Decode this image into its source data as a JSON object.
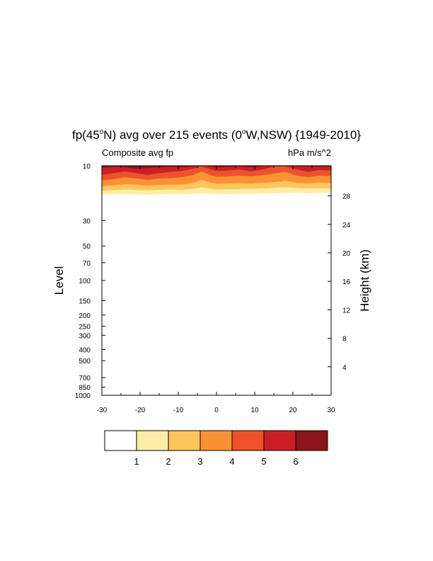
{
  "chart_data": {
    "type": "contour",
    "title_prefix": "fp(45",
    "title_deg1": "o",
    "title_mid": "N) avg over 215 events (0",
    "title_deg2": "o",
    "title_suffix": "W,NSW) {1949-2010}",
    "left_string": "Composite avg fp",
    "right_string": "hPa m/s^2",
    "ylabel": "Level",
    "ylabel_right": "Height (km)",
    "x_ticks": [
      -30,
      -20,
      -10,
      0,
      10,
      20,
      30
    ],
    "x_tick_labels": [
      "-30",
      "-20",
      "-10",
      "0",
      "10",
      "20",
      "30"
    ],
    "y_ticks": [
      10,
      30,
      50,
      70,
      100,
      150,
      200,
      250,
      300,
      400,
      500,
      700,
      850,
      1000
    ],
    "y_tick_labels": [
      "10",
      "30",
      "50",
      "70",
      "100",
      "150",
      "200",
      "250",
      "300",
      "400",
      "500",
      "700",
      "850",
      "1000"
    ],
    "y_log_scale": true,
    "ylim": [
      1000,
      10
    ],
    "xlim": [
      -30,
      30
    ],
    "height_ticks_km": [
      4,
      8,
      12,
      16,
      20,
      24,
      28
    ],
    "height_tick_labels": [
      "4",
      "8",
      "12",
      "16",
      "20",
      "24",
      "28"
    ],
    "contour_levels": [
      1,
      2,
      3,
      4,
      5,
      6
    ],
    "contour_level_labels": [
      "1",
      "2",
      "3",
      "4",
      "5",
      "6"
    ],
    "colors": [
      "#ffffff",
      "#fdeda8",
      "#fdc65c",
      "#f99235",
      "#ec532b",
      "#cb1f28",
      "#8b1419"
    ],
    "x_profile": [
      -30,
      -27,
      -24,
      -21,
      -18,
      -15,
      -12,
      -9,
      -6,
      -4,
      -2,
      0,
      3,
      6,
      9,
      12,
      15,
      18,
      21,
      24,
      27,
      30
    ],
    "isoline_pressure": {
      "1": [
        17.8,
        17.7,
        17.6,
        17.8,
        17.9,
        17.7,
        17.6,
        17.7,
        17.6,
        17.4,
        17.5,
        17.6,
        17.7,
        17.6,
        17.6,
        17.5,
        17.4,
        17.3,
        17.3,
        17.4,
        17.3,
        17.3
      ],
      "2": [
        16.5,
        16.3,
        16.1,
        16.2,
        16.4,
        16.2,
        16.1,
        16.2,
        15.9,
        15.4,
        15.8,
        16.0,
        16.0,
        15.9,
        15.9,
        15.8,
        15.6,
        15.4,
        15.6,
        15.8,
        15.7,
        15.7
      ],
      "3": [
        15.1,
        14.8,
        14.5,
        14.6,
        14.9,
        14.7,
        14.6,
        14.6,
        14.1,
        13.3,
        13.9,
        14.4,
        14.3,
        14.2,
        14.3,
        14.1,
        13.9,
        13.5,
        14.1,
        14.3,
        14.0,
        14.1
      ],
      "4": [
        13.4,
        13.1,
        12.6,
        12.9,
        13.3,
        12.9,
        12.8,
        12.6,
        12.0,
        11.2,
        11.9,
        12.5,
        12.4,
        12.2,
        12.4,
        12.1,
        11.7,
        11.3,
        12.2,
        12.6,
        12.2,
        12.3
      ],
      "5": [
        12.0,
        11.6,
        11.2,
        11.6,
        12.0,
        11.6,
        11.3,
        11.1,
        10.6,
        10.1,
        10.6,
        11.1,
        11.0,
        10.8,
        11.2,
        10.8,
        10.2,
        10.1,
        10.8,
        11.3,
        10.9,
        11.0
      ],
      "6": [
        10.4,
        10.2,
        10.3,
        10.6,
        10.5,
        10.3,
        10.2,
        10.3,
        10.1,
        10.0,
        10.1,
        10.3,
        10.2,
        10.1,
        10.3,
        10.1,
        10.0,
        10.0,
        10.1,
        10.2,
        10.2,
        10.1
      ]
    }
  }
}
